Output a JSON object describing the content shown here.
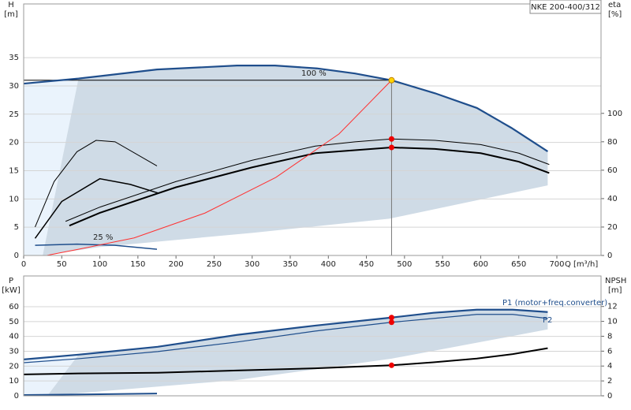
{
  "chart_data": [
    {
      "type": "line",
      "title": "NKE 200-400/312",
      "y_label": "H",
      "y_unit": "[m]",
      "y2_label": "eta",
      "y2_unit": "[%]",
      "x_label": "Q [m³/h]",
      "xlim": [
        0,
        758
      ],
      "xticks": [
        0,
        50,
        100,
        150,
        200,
        250,
        300,
        350,
        400,
        450,
        500,
        550,
        600,
        650,
        700
      ],
      "ylim": [
        0,
        44.5
      ],
      "yticks": [
        0,
        5,
        10,
        15,
        20,
        25,
        30,
        35
      ],
      "y2lim": [
        0,
        177
      ],
      "y2ticks": [
        0,
        20,
        40,
        60,
        80,
        100
      ],
      "grid": true,
      "light_shade": {
        "x": [
          0,
          0,
          72,
          25
        ],
        "y": [
          0,
          30.4,
          31.3,
          0
        ],
        "color": "#eaf3fc"
      },
      "shade": {
        "x": [
          25,
          72,
          175,
          280,
          330,
          385,
          435,
          483,
          540,
          595,
          640,
          688,
          688,
          480,
          300,
          100
        ],
        "y": [
          0,
          31.3,
          32.9,
          33.6,
          33.6,
          33.1,
          32.2,
          31,
          28.7,
          26.1,
          22.6,
          18.4,
          12.4,
          6.5,
          4,
          1.5
        ],
        "color": "#cfdbe6"
      },
      "series": [
        {
          "name": "100 %",
          "x": [
            0,
            72,
            175,
            280,
            330,
            385,
            435,
            483,
            540,
            595,
            640,
            688
          ],
          "values": [
            30.4,
            31.3,
            32.9,
            33.6,
            33.6,
            33.1,
            32.2,
            31,
            28.7,
            26.1,
            22.6,
            18.4
          ],
          "color": "#1f4e8c",
          "width": 2.2
        },
        {
          "name": "25 %",
          "x": [
            15,
            70,
            120,
            175
          ],
          "values": [
            1.8,
            2,
            1.8,
            1.1
          ],
          "color": "#1f4e8c",
          "width": 1.5
        },
        {
          "x": [
            55,
            100,
            200,
            300,
            383,
            435,
            483,
            540,
            600,
            650,
            690
          ],
          "values": [
            24,
            34,
            52,
            67,
            77,
            80,
            82,
            81,
            78,
            72,
            64
          ],
          "axis": "y2",
          "color": "#000000",
          "width": 1
        },
        {
          "x": [
            60,
            100,
            200,
            300,
            383,
            483,
            540,
            600,
            650,
            690
          ],
          "values": [
            21,
            30,
            48,
            62,
            72,
            76,
            75,
            72,
            66,
            58
          ],
          "axis": "y2",
          "color": "#000000",
          "width": 2
        },
        {
          "x": [
            15,
            40,
            70,
            95,
            120,
            175
          ],
          "values": [
            20,
            52,
            73,
            81,
            80,
            63
          ],
          "axis": "y2",
          "color": "#000000",
          "width": 1
        },
        {
          "x": [
            15,
            50,
            100,
            140,
            176
          ],
          "values": [
            12,
            38,
            54,
            50,
            44
          ],
          "axis": "y2",
          "color": "#000000",
          "width": 1.5
        },
        {
          "x": [
            30,
            72,
            145,
            238,
            331,
            414,
            483
          ],
          "values": [
            0,
            1.1,
            3.1,
            7.5,
            13.8,
            21.5,
            31
          ],
          "color": "#ff3030",
          "width": 1
        }
      ],
      "markers": [
        {
          "x": 483,
          "value": 31,
          "color": "#ffd400"
        },
        {
          "x": 483,
          "value": 82,
          "axis": "y2",
          "color": "#ee0000"
        },
        {
          "x": 483,
          "value": 76,
          "axis": "y2",
          "color": "#ee0000"
        }
      ]
    },
    {
      "type": "line",
      "y_label": "P",
      "y_unit": "[kW]",
      "y2_label": "NPSH",
      "y2_unit": "[m]",
      "xlim": [
        0,
        758
      ],
      "ylim": [
        0,
        80.7
      ],
      "yticks": [
        0,
        10,
        20,
        30,
        40,
        50,
        60
      ],
      "y2lim": [
        0,
        16.1
      ],
      "y2ticks": [
        0,
        2,
        4,
        6,
        8,
        10,
        12
      ],
      "grid": true,
      "light_shade": {
        "x": [
          0,
          0,
          72,
          31
        ],
        "y": [
          0,
          24.5,
          27.7,
          0
        ],
        "color": "#eaf3fc"
      },
      "shade": {
        "x": [
          31,
          72,
          176,
          280,
          383,
          483,
          538,
          595,
          642,
          688,
          688,
          483,
          280
        ],
        "y": [
          0,
          27.7,
          33,
          41,
          47.3,
          52.7,
          55.9,
          58,
          58,
          56.4,
          44.7,
          25,
          10.6
        ],
        "color": "#cfdbe6"
      },
      "series": [
        {
          "name": "P1 (motor+freq.converter)",
          "x": [
            0,
            72,
            176,
            280,
            383,
            483,
            538,
            595,
            642,
            688
          ],
          "values": [
            24.5,
            27.7,
            33,
            41,
            47.3,
            52.7,
            55.9,
            58,
            58,
            56.4
          ],
          "color": "#1f4e8c",
          "width": 2.2
        },
        {
          "name": "P2",
          "x": [
            0,
            72,
            176,
            280,
            383,
            483,
            538,
            595,
            642,
            688
          ],
          "values": [
            22.3,
            25,
            29.8,
            36.2,
            43.6,
            49.5,
            52.1,
            54.8,
            54.8,
            52.1
          ],
          "color": "#1f4e8c",
          "width": 1.2
        },
        {
          "x": [
            0,
            72,
            176,
            280,
            383,
            483,
            538,
            595,
            642,
            688
          ],
          "values": [
            2.87,
            3,
            3.1,
            3.4,
            3.7,
            4.1,
            4.5,
            5,
            5.6,
            6.4
          ],
          "axis": "y2",
          "color": "#000000",
          "width": 2
        },
        {
          "x": [
            0,
            175
          ],
          "values": [
            0.5,
            1.5
          ],
          "color": "#1f4e8c",
          "width": 2
        }
      ],
      "markers": [
        {
          "x": 483,
          "value": 52.7,
          "color": "#ee0000"
        },
        {
          "x": 483,
          "value": 49.5,
          "color": "#ee0000"
        },
        {
          "x": 483,
          "value": 4.1,
          "axis": "y2",
          "color": "#ee0000"
        }
      ]
    }
  ]
}
